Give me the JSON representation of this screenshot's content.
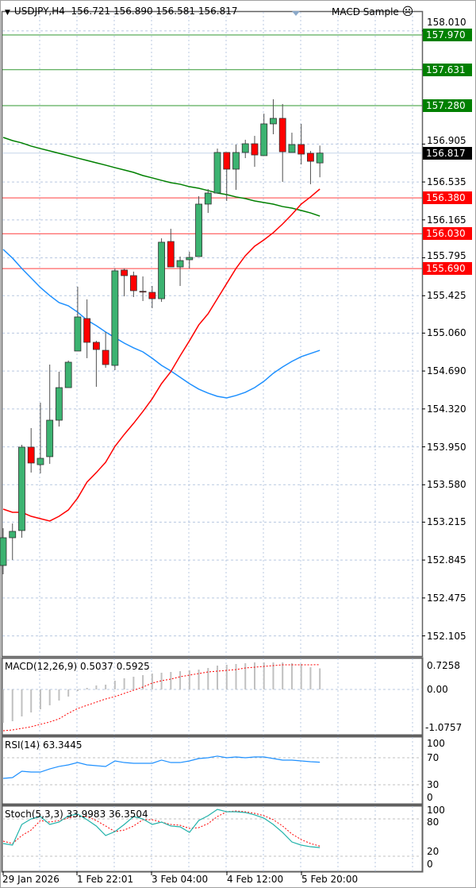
{
  "header": {
    "symbol_timeframe": "USDJPY,H4",
    "ohlc": "156.721 156.890 156.581 156.817",
    "expert": "MACD Sample",
    "expert_icon": "sad-face-icon"
  },
  "colors": {
    "bull": "#3cb371",
    "bear": "#ff0000",
    "grid": "#b8c8e0",
    "level_green": "#008000",
    "level_red": "#ff0000",
    "ma_red": "#ff0000",
    "ma_blue": "#1e90ff",
    "ma_green": "#008000",
    "rsi": "#1e90ff",
    "stoch_main": "#20b2aa",
    "stoch_signal": "#ff0000",
    "macd_hist": "#c0c0c0",
    "macd_signal": "#ff0000"
  },
  "price_axis": {
    "ticks": [
      "158.010",
      "156.905",
      "156.535",
      "156.165",
      "155.795",
      "155.425",
      "155.060",
      "154.690",
      "154.320",
      "153.950",
      "153.580",
      "153.215",
      "152.845",
      "152.475",
      "152.105"
    ]
  },
  "levels": [
    {
      "price": "157.970",
      "color": "green"
    },
    {
      "price": "157.631",
      "color": "green"
    },
    {
      "price": "157.280",
      "color": "green"
    },
    {
      "price": "156.380",
      "color": "red"
    },
    {
      "price": "156.030",
      "color": "red"
    },
    {
      "price": "155.690",
      "color": "red"
    }
  ],
  "current_price": "156.817",
  "candles": [
    [
      152.792,
      153.156,
      152.706,
      153.063
    ],
    [
      153.063,
      153.202,
      152.846,
      153.125
    ],
    [
      153.133,
      153.97,
      153.063,
      153.947
    ],
    [
      153.947,
      154.133,
      153.699,
      153.792
    ],
    [
      153.776,
      154.381,
      153.691,
      153.838
    ],
    [
      153.854,
      154.753,
      153.784,
      154.21
    ],
    [
      154.21,
      154.683,
      154.148,
      154.528
    ],
    [
      154.528,
      154.792,
      154.528,
      154.776
    ],
    [
      154.885,
      155.513,
      154.885,
      155.218
    ],
    [
      155.202,
      155.389,
      154.815,
      154.97
    ],
    [
      154.97,
      154.985,
      154.536,
      154.9
    ],
    [
      154.892,
      155.071,
      154.722,
      154.753
    ],
    [
      154.745,
      155.691,
      154.699,
      155.668
    ],
    [
      155.675,
      155.691,
      155.419,
      155.621
    ],
    [
      155.621,
      155.66,
      155.412,
      155.474
    ],
    [
      155.468,
      155.613,
      155.373,
      155.464
    ],
    [
      155.458,
      155.52,
      155.303,
      155.396
    ],
    [
      155.396,
      155.985,
      155.365,
      155.947
    ],
    [
      155.954,
      156.078,
      155.706,
      155.706
    ],
    [
      155.706,
      155.807,
      155.52,
      155.768
    ],
    [
      155.776,
      155.854,
      155.691,
      155.799
    ],
    [
      155.807,
      156.396,
      155.807,
      156.319
    ],
    [
      156.319,
      156.466,
      156.233,
      156.427
    ],
    [
      156.427,
      156.861,
      156.427,
      156.823
    ],
    [
      156.823,
      156.823,
      156.35,
      156.66
    ],
    [
      156.66,
      156.9,
      156.458,
      156.823
    ],
    [
      156.823,
      156.947,
      156.768,
      156.908
    ],
    [
      156.908,
      156.985,
      156.683,
      156.799
    ],
    [
      156.792,
      157.202,
      156.792,
      157.102
    ],
    [
      157.102,
      157.342,
      157.001,
      157.156
    ],
    [
      157.156,
      157.296,
      156.536,
      156.83
    ],
    [
      156.823,
      157.016,
      156.823,
      156.9
    ],
    [
      156.9,
      157.102,
      156.706,
      156.807
    ],
    [
      156.815,
      156.838,
      156.513,
      156.737
    ],
    [
      156.721,
      156.89,
      156.581,
      156.817
    ]
  ],
  "ma_red": [
    153.342,
    153.311,
    153.311,
    153.272,
    153.249,
    153.226,
    153.272,
    153.334,
    153.451,
    153.606,
    153.699,
    153.799,
    153.954,
    154.071,
    154.179,
    154.295,
    154.419,
    154.567,
    154.683,
    154.838,
    154.985,
    155.14,
    155.249,
    155.396,
    155.544,
    155.691,
    155.815,
    155.908,
    155.97,
    156.04,
    156.125,
    156.218,
    156.319,
    156.389,
    156.466
  ],
  "ma_blue": [
    155.877,
    155.792,
    155.691,
    155.598,
    155.505,
    155.427,
    155.358,
    155.326,
    155.264,
    155.187,
    155.133,
    155.071,
    155.016,
    154.962,
    154.916,
    154.877,
    154.815,
    154.745,
    154.691,
    154.629,
    154.567,
    154.513,
    154.474,
    154.443,
    154.427,
    154.451,
    154.482,
    154.528,
    154.59,
    154.668,
    154.73,
    154.784,
    154.83,
    154.861,
    154.892
  ],
  "ma_green": [
    156.97,
    156.939,
    156.916,
    156.885,
    156.861,
    156.838,
    156.815,
    156.792,
    156.768,
    156.745,
    156.722,
    156.699,
    156.675,
    156.652,
    156.629,
    156.598,
    156.575,
    156.551,
    156.528,
    156.513,
    156.489,
    156.474,
    156.451,
    156.427,
    156.412,
    156.389,
    156.373,
    156.35,
    156.334,
    156.319,
    156.295,
    156.28,
    156.257,
    156.233,
    156.202
  ],
  "macd": {
    "label": "MACD(12,26,9) 0.5037 0.5925",
    "ticks": [
      "0.7258",
      "0.00",
      "-1.0757"
    ],
    "histogram": [
      -0.798,
      -0.76,
      -0.646,
      -0.551,
      -0.475,
      -0.38,
      -0.266,
      -0.171,
      -0.038,
      0.038,
      0.095,
      0.114,
      0.209,
      0.266,
      0.304,
      0.342,
      0.38,
      0.399,
      0.418,
      0.437,
      0.456,
      0.475,
      0.513,
      0.57,
      0.589,
      0.608,
      0.627,
      0.646,
      0.646,
      0.646,
      0.646,
      0.627,
      0.608,
      0.53,
      0.5037
    ],
    "signal": [
      -0.988,
      -0.969,
      -0.931,
      -0.893,
      -0.836,
      -0.779,
      -0.703,
      -0.57,
      -0.456,
      -0.38,
      -0.304,
      -0.228,
      -0.171,
      -0.095,
      -0.019,
      0.057,
      0.152,
      0.209,
      0.247,
      0.304,
      0.342,
      0.38,
      0.418,
      0.437,
      0.456,
      0.475,
      0.513,
      0.532,
      0.551,
      0.57,
      0.589,
      0.589,
      0.589,
      0.589,
      0.5925
    ]
  },
  "rsi": {
    "label": "RSI(14) 63.3445",
    "ticks": [
      "100",
      "70",
      "30",
      "0"
    ],
    "values": [
      39.4,
      40.6,
      50.0,
      48.8,
      48.8,
      53.5,
      57.1,
      59.4,
      62.9,
      59.4,
      58.2,
      57.1,
      65.3,
      62.9,
      61.8,
      61.8,
      61.8,
      66.5,
      62.9,
      62.9,
      65.3,
      68.8,
      70.0,
      72.4,
      70.0,
      71.2,
      70.0,
      71.2,
      71.2,
      68.8,
      66.5,
      66.5,
      65.3,
      64.1,
      63.3445
    ]
  },
  "stoch": {
    "label": "Stoch(5,3,3) 33.9983 36.3504",
    "ticks": [
      "100",
      "80",
      "20",
      "0"
    ],
    "main": [
      40.5,
      38.0,
      70.9,
      79.7,
      83.5,
      70.9,
      74.7,
      84.8,
      87.3,
      78.5,
      68.4,
      53.2,
      59.5,
      70.9,
      83.5,
      79.7,
      70.9,
      74.7,
      68.4,
      67.1,
      58.2,
      77.2,
      84.8,
      94.9,
      91.1,
      91.1,
      89.9,
      86.1,
      81.0,
      70.9,
      58.2,
      43.0,
      38.0,
      35.4,
      33.9983
    ],
    "signal": [
      44.3,
      40.5,
      53.2,
      62.0,
      77.2,
      74.7,
      77.2,
      81.0,
      84.8,
      83.5,
      77.2,
      68.4,
      59.5,
      62.0,
      68.4,
      78.5,
      78.5,
      74.7,
      70.9,
      69.6,
      64.6,
      65.8,
      72.2,
      83.5,
      91.1,
      92.4,
      91.1,
      88.6,
      84.8,
      78.5,
      68.4,
      55.7,
      46.8,
      40.5,
      36.3504
    ]
  },
  "time_axis": [
    "29 Jan 2026",
    "1 Feb 22:01",
    "3 Feb 04:00",
    "4 Feb 12:00",
    "5 Feb 20:00"
  ]
}
